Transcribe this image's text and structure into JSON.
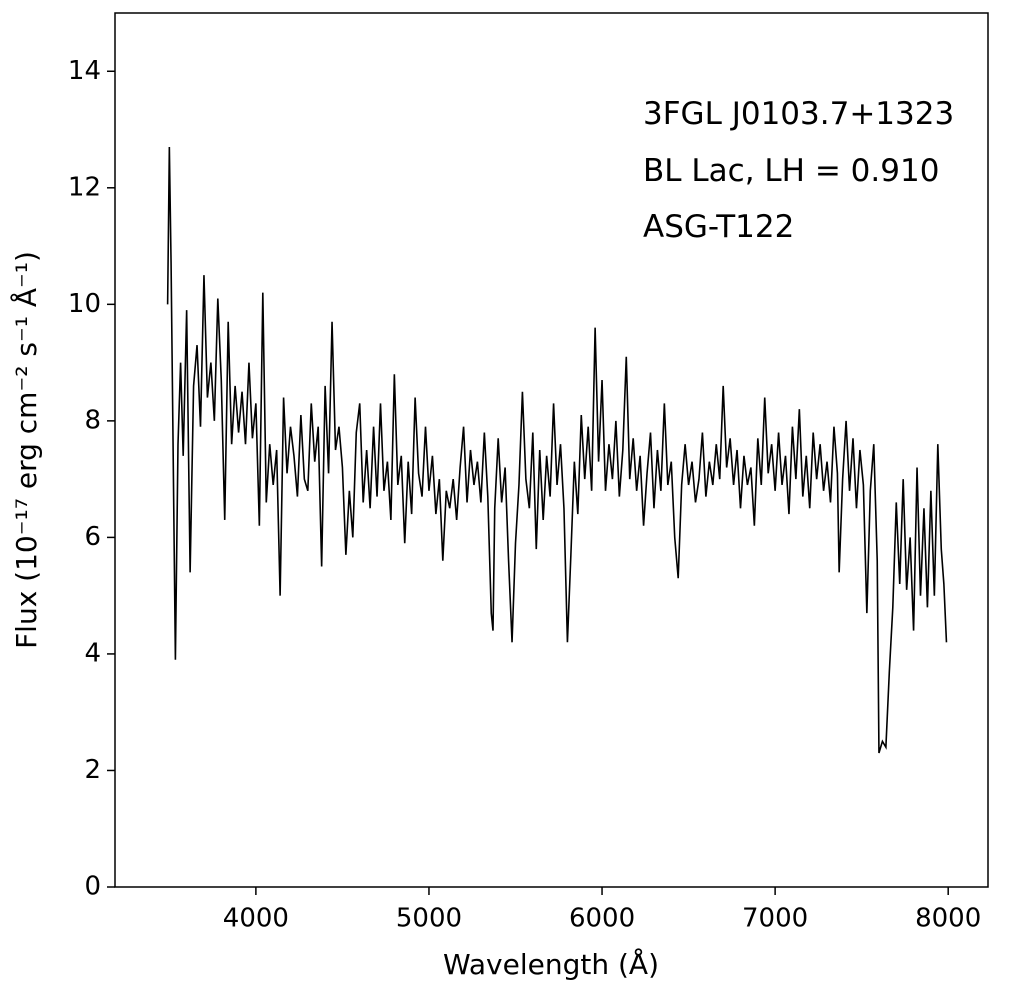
{
  "chart_data": {
    "type": "line",
    "annotations": [
      "3FGL J0103.7+1323",
      "BL Lac, LH = 0.910",
      "ASG-T122"
    ],
    "xlabel": "Wavelength (Å)",
    "ylabel": "Flux (10⁻¹⁷ erg cm⁻² s⁻¹ Å⁻¹)",
    "xlim": [
      3186,
      8230
    ],
    "ylim": [
      0,
      15
    ],
    "xticks": [
      4000,
      5000,
      6000,
      7000,
      8000
    ],
    "yticks": [
      0,
      2,
      4,
      6,
      8,
      10,
      12,
      14
    ],
    "grid": false,
    "series": [
      {
        "color": "#000000",
        "x": [
          3490,
          3500,
          3510,
          3520,
          3535,
          3550,
          3565,
          3580,
          3600,
          3620,
          3640,
          3660,
          3680,
          3700,
          3720,
          3740,
          3760,
          3780,
          3800,
          3820,
          3840,
          3860,
          3880,
          3900,
          3920,
          3940,
          3960,
          3980,
          4000,
          4020,
          4040,
          4060,
          4080,
          4100,
          4120,
          4140,
          4160,
          4180,
          4200,
          4220,
          4240,
          4260,
          4280,
          4300,
          4320,
          4340,
          4360,
          4380,
          4400,
          4420,
          4440,
          4460,
          4480,
          4500,
          4520,
          4540,
          4560,
          4580,
          4600,
          4620,
          4640,
          4660,
          4680,
          4700,
          4720,
          4740,
          4760,
          4780,
          4800,
          4820,
          4840,
          4860,
          4880,
          4900,
          4920,
          4940,
          4960,
          4980,
          5000,
          5020,
          5040,
          5060,
          5080,
          5100,
          5120,
          5140,
          5160,
          5180,
          5200,
          5220,
          5240,
          5260,
          5280,
          5300,
          5320,
          5340,
          5360,
          5370,
          5380,
          5400,
          5420,
          5440,
          5460,
          5480,
          5500,
          5520,
          5540,
          5560,
          5580,
          5600,
          5620,
          5640,
          5660,
          5680,
          5700,
          5720,
          5740,
          5760,
          5780,
          5800,
          5820,
          5840,
          5860,
          5880,
          5900,
          5920,
          5940,
          5960,
          5980,
          6000,
          6020,
          6040,
          6060,
          6080,
          6100,
          6120,
          6140,
          6160,
          6180,
          6200,
          6220,
          6240,
          6260,
          6280,
          6300,
          6320,
          6340,
          6360,
          6380,
          6400,
          6420,
          6440,
          6460,
          6480,
          6500,
          6520,
          6540,
          6560,
          6580,
          6600,
          6620,
          6640,
          6660,
          6680,
          6700,
          6720,
          6740,
          6760,
          6780,
          6800,
          6820,
          6840,
          6860,
          6880,
          6900,
          6920,
          6940,
          6960,
          6980,
          7000,
          7020,
          7040,
          7060,
          7080,
          7100,
          7120,
          7140,
          7160,
          7180,
          7200,
          7220,
          7240,
          7260,
          7280,
          7300,
          7320,
          7340,
          7360,
          7370,
          7390,
          7410,
          7430,
          7450,
          7470,
          7490,
          7510,
          7530,
          7550,
          7570,
          7590,
          7600,
          7620,
          7640,
          7660,
          7680,
          7700,
          7720,
          7740,
          7760,
          7780,
          7800,
          7820,
          7840,
          7860,
          7880,
          7900,
          7920,
          7940,
          7960,
          7975,
          7990
        ],
        "values": [
          10.0,
          12.7,
          10.7,
          8.0,
          3.9,
          7.6,
          9.0,
          7.4,
          9.9,
          5.4,
          8.6,
          9.3,
          7.9,
          10.5,
          8.4,
          9.0,
          8.0,
          10.1,
          8.7,
          6.3,
          9.7,
          7.6,
          8.6,
          7.8,
          8.5,
          7.6,
          9.0,
          7.7,
          8.3,
          6.2,
          10.2,
          6.6,
          7.6,
          6.9,
          7.5,
          5.0,
          8.4,
          7.1,
          7.9,
          7.4,
          6.7,
          8.1,
          7.0,
          6.8,
          8.3,
          7.3,
          7.9,
          5.5,
          8.6,
          7.1,
          9.7,
          7.5,
          7.9,
          7.2,
          5.7,
          6.8,
          6.0,
          7.8,
          8.3,
          6.6,
          7.5,
          6.5,
          7.9,
          6.7,
          8.3,
          6.8,
          7.3,
          6.3,
          8.8,
          6.9,
          7.4,
          5.9,
          7.3,
          6.4,
          8.4,
          7.1,
          6.7,
          7.9,
          6.8,
          7.4,
          6.4,
          7.0,
          5.6,
          6.8,
          6.5,
          7.0,
          6.3,
          7.2,
          7.9,
          6.6,
          7.5,
          6.9,
          7.3,
          6.6,
          7.8,
          6.7,
          4.7,
          4.4,
          6.5,
          7.7,
          6.6,
          7.2,
          5.6,
          4.2,
          5.9,
          6.9,
          8.5,
          7.0,
          6.5,
          7.8,
          5.8,
          7.5,
          6.3,
          7.4,
          6.7,
          8.3,
          6.9,
          7.6,
          6.5,
          4.2,
          5.7,
          7.3,
          6.4,
          8.1,
          7.0,
          7.9,
          6.8,
          9.6,
          7.3,
          8.7,
          6.8,
          7.6,
          7.0,
          8.0,
          6.7,
          7.5,
          9.1,
          7.0,
          7.7,
          6.8,
          7.4,
          6.2,
          7.1,
          7.8,
          6.5,
          7.5,
          6.8,
          8.3,
          6.9,
          7.3,
          6.0,
          5.3,
          6.9,
          7.6,
          6.9,
          7.3,
          6.6,
          7.0,
          7.8,
          6.7,
          7.3,
          6.9,
          7.6,
          7.0,
          8.6,
          7.2,
          7.7,
          6.9,
          7.5,
          6.5,
          7.4,
          6.9,
          7.2,
          6.2,
          7.7,
          6.9,
          8.4,
          7.1,
          7.6,
          6.8,
          7.8,
          6.9,
          7.4,
          6.4,
          7.9,
          7.0,
          8.2,
          6.7,
          7.4,
          6.5,
          7.8,
          7.0,
          7.6,
          6.8,
          7.3,
          6.6,
          7.9,
          7.1,
          5.4,
          7.0,
          8.0,
          6.8,
          7.7,
          6.5,
          7.5,
          6.9,
          4.7,
          6.8,
          7.6,
          5.6,
          2.3,
          2.5,
          2.4,
          3.7,
          4.8,
          6.6,
          5.2,
          7.0,
          5.1,
          6.0,
          4.4,
          7.2,
          5.0,
          6.5,
          4.8,
          6.8,
          5.0,
          7.6,
          5.8,
          5.2,
          4.2
        ]
      }
    ]
  }
}
